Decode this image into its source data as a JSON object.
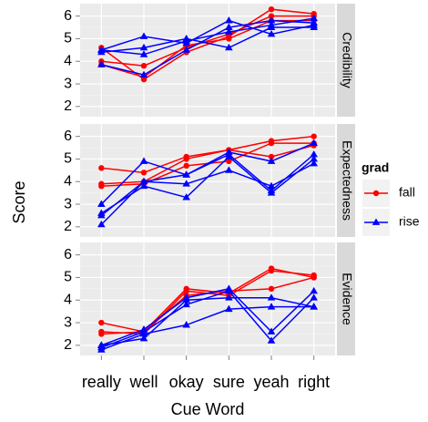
{
  "chart_data": {
    "type": "line",
    "xlabel": "Cue Word",
    "ylabel": "Score",
    "categories": [
      "really",
      "well",
      "okay",
      "sure",
      "yeah",
      "right"
    ],
    "ylim": [
      1.55,
      6.55
    ],
    "yticks": [
      2,
      3,
      4,
      5,
      6
    ],
    "grid": true,
    "legend_title": "grad",
    "legend_position": "right",
    "series": [
      {
        "name": "fall",
        "color": "#ff0000",
        "marker": "circle"
      },
      {
        "name": "rise",
        "color": "#0000ff",
        "marker": "triangle"
      }
    ],
    "facets": [
      {
        "label": "Credibility",
        "groups": [
          [
            [
              4.6,
              3.2,
              4.4,
              5.1,
              6.3,
              6.1
            ],
            [
              4.0,
              3.8,
              4.6,
              5.2,
              6.0,
              6.0
            ],
            [
              3.85,
              3.3,
              4.7,
              5.0,
              5.8,
              5.8
            ]
          ],
          [
            [
              4.5,
              5.1,
              4.8,
              5.8,
              5.2,
              5.6
            ],
            [
              4.4,
              4.6,
              5.0,
              4.6,
              5.5,
              5.5
            ],
            [
              3.85,
              3.4,
              4.5,
              5.5,
              5.8,
              5.7
            ],
            [
              4.5,
              4.3,
              4.9,
              5.3,
              5.6,
              5.9
            ]
          ]
        ]
      },
      {
        "label": "Expectedness",
        "groups": [
          [
            [
              4.6,
              4.4,
              5.1,
              5.4,
              5.1,
              5.6
            ],
            [
              3.9,
              4.0,
              5.0,
              5.4,
              5.8,
              6.0
            ],
            [
              3.8,
              3.9,
              4.7,
              4.9,
              5.7,
              5.7
            ]
          ],
          [
            [
              3.0,
              4.9,
              4.3,
              5.3,
              4.9,
              5.7
            ],
            [
              2.6,
              3.8,
              3.3,
              5.1,
              3.5,
              5.0
            ],
            [
              2.1,
              4.0,
              3.9,
              4.5,
              3.8,
              4.8
            ],
            [
              2.5,
              4.0,
              4.3,
              5.2,
              3.6,
              5.2
            ]
          ]
        ]
      },
      {
        "label": "Evidence",
        "groups": [
          [
            [
              3.0,
              2.6,
              4.5,
              4.3,
              5.4,
              5.0
            ],
            [
              2.6,
              2.5,
              4.4,
              4.2,
              5.3,
              5.1
            ],
            [
              2.5,
              2.6,
              4.2,
              4.4,
              4.5,
              5.0
            ]
          ],
          [
            [
              2.0,
              2.7,
              4.1,
              4.5,
              2.6,
              4.4
            ],
            [
              1.8,
              2.5,
              2.9,
              3.6,
              3.7,
              3.7
            ],
            [
              1.9,
              2.6,
              3.8,
              4.4,
              2.2,
              4.1
            ],
            [
              2.0,
              2.3,
              4.0,
              4.1,
              4.1,
              3.7
            ]
          ]
        ]
      }
    ]
  }
}
